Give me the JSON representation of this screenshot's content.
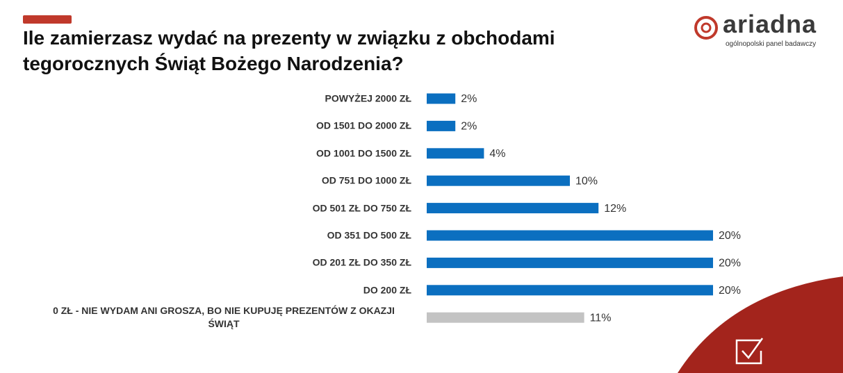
{
  "chart_data": {
    "type": "bar",
    "orientation": "horizontal",
    "title": "Ile zamierzasz wydać na prezenty w związku z obchodami tegorocznych Świąt Bożego Narodzenia?",
    "categories": [
      "POWYŻEJ 2000 ZŁ",
      "OD 1501 DO 2000 ZŁ",
      "OD 1001 DO 1500 ZŁ",
      "OD 751 DO 1000 ZŁ",
      "OD 501 ZŁ DO 750 ZŁ",
      "OD 351 DO 500 ZŁ",
      "OD 201 ZŁ DO 350 ZŁ",
      "DO 200 ZŁ",
      "0 ZŁ  - NIE WYDAM ANI GROSZA, BO NIE KUPUJĘ PREZENTÓW Z OKAZJI ŚWIĄT"
    ],
    "values": [
      2,
      2,
      4,
      10,
      12,
      20,
      20,
      20,
      11
    ],
    "value_labels": [
      "2%",
      "2%",
      "4%",
      "10%",
      "12%",
      "20%",
      "20%",
      "20%",
      "11%"
    ],
    "colors": [
      "#0b6fc0",
      "#0b6fc0",
      "#0b6fc0",
      "#0b6fc0",
      "#0b6fc0",
      "#0b6fc0",
      "#0b6fc0",
      "#0b6fc0",
      "#c3c3c3"
    ]
  },
  "logo": {
    "name": "ariadna",
    "tagline": "ogólnopolski panel badawczy"
  }
}
